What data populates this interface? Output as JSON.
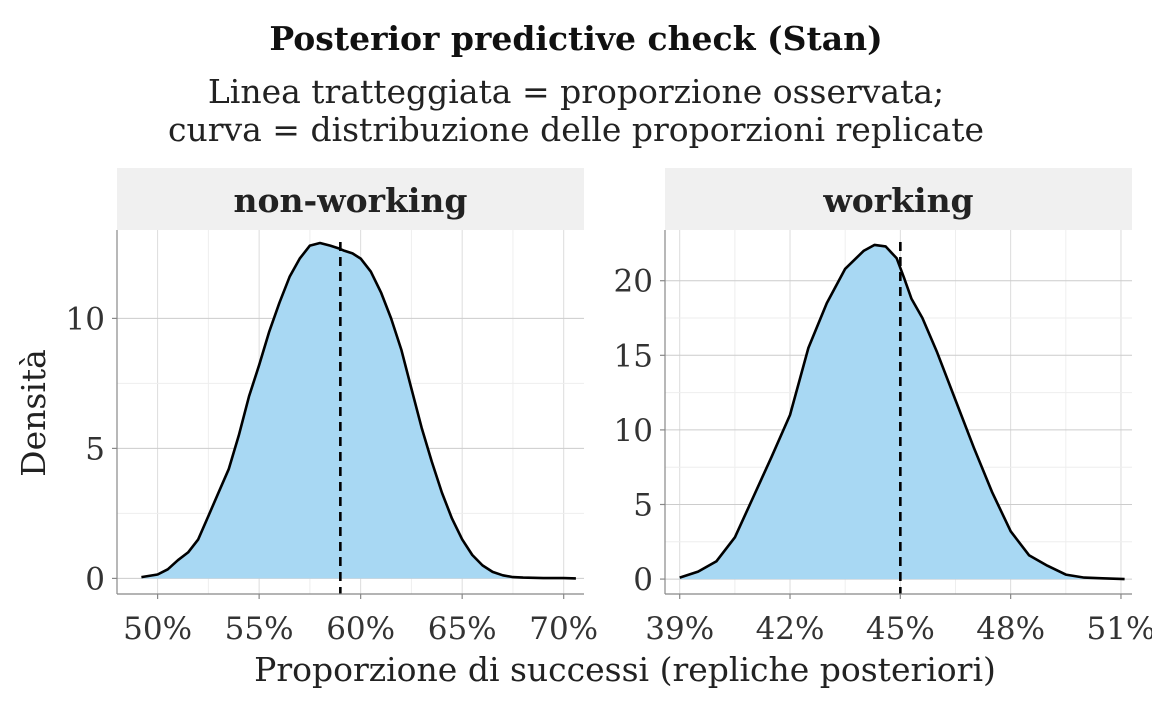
{
  "chart_data": {
    "type": "area",
    "title": "Posterior predictive check (Stan)",
    "subtitle_lines": [
      "Linea tratteggiata = proporzione osservata;",
      "curva = distribuzione delle proporzioni replicate"
    ],
    "xlabel": "Proporzione di successi (repliche posteriori)",
    "ylabel": "Densità",
    "fill_color": "#a8d8f3",
    "line_color": "#000000",
    "grid": true,
    "panels": [
      {
        "name": "non-working",
        "xlim": [
          0.48,
          0.71
        ],
        "ylim": [
          -0.6,
          13.4
        ],
        "x_ticks": [
          0.5,
          0.55,
          0.6,
          0.65,
          0.7
        ],
        "x_tick_labels": [
          "50%",
          "55%",
          "60%",
          "65%",
          "70%"
        ],
        "y_ticks": [
          0,
          5,
          10
        ],
        "y_tick_labels": [
          "0",
          "5",
          "10"
        ],
        "observed": 0.59,
        "x": [
          0.492,
          0.5,
          0.505,
          0.51,
          0.515,
          0.52,
          0.525,
          0.53,
          0.535,
          0.54,
          0.545,
          0.55,
          0.555,
          0.56,
          0.565,
          0.57,
          0.575,
          0.58,
          0.585,
          0.589,
          0.592,
          0.596,
          0.6,
          0.605,
          0.61,
          0.615,
          0.62,
          0.625,
          0.63,
          0.635,
          0.64,
          0.645,
          0.65,
          0.655,
          0.66,
          0.665,
          0.67,
          0.675,
          0.68,
          0.69,
          0.7,
          0.706
        ],
        "y": [
          0.05,
          0.15,
          0.35,
          0.7,
          1.0,
          1.5,
          2.4,
          3.3,
          4.2,
          5.5,
          7.0,
          8.2,
          9.5,
          10.6,
          11.6,
          12.3,
          12.8,
          12.9,
          12.8,
          12.7,
          12.6,
          12.5,
          12.3,
          11.8,
          11.0,
          10.0,
          8.8,
          7.3,
          5.8,
          4.5,
          3.3,
          2.3,
          1.5,
          0.9,
          0.5,
          0.25,
          0.12,
          0.05,
          0.03,
          0.01,
          0.01,
          0.0
        ]
      },
      {
        "name": "working",
        "xlim": [
          0.386,
          0.513
        ],
        "ylim": [
          -1.0,
          23.4
        ],
        "x_ticks": [
          0.39,
          0.42,
          0.45,
          0.48,
          0.51
        ],
        "x_tick_labels": [
          "39%",
          "42%",
          "45%",
          "48%",
          "51%"
        ],
        "y_ticks": [
          0,
          5,
          10,
          15,
          20
        ],
        "y_tick_labels": [
          "0",
          "5",
          "10",
          "15",
          "20"
        ],
        "observed": 0.45,
        "x": [
          0.39,
          0.395,
          0.4,
          0.405,
          0.41,
          0.415,
          0.42,
          0.425,
          0.43,
          0.435,
          0.44,
          0.443,
          0.446,
          0.449,
          0.451,
          0.453,
          0.456,
          0.46,
          0.465,
          0.47,
          0.475,
          0.48,
          0.485,
          0.49,
          0.495,
          0.5,
          0.505,
          0.511
        ],
        "y": [
          0.1,
          0.5,
          1.2,
          2.8,
          5.5,
          8.2,
          11.0,
          15.5,
          18.5,
          20.8,
          22.0,
          22.4,
          22.3,
          21.5,
          20.2,
          18.8,
          17.5,
          15.2,
          12.0,
          8.8,
          5.8,
          3.2,
          1.6,
          0.9,
          0.3,
          0.1,
          0.05,
          0.0
        ]
      }
    ]
  }
}
